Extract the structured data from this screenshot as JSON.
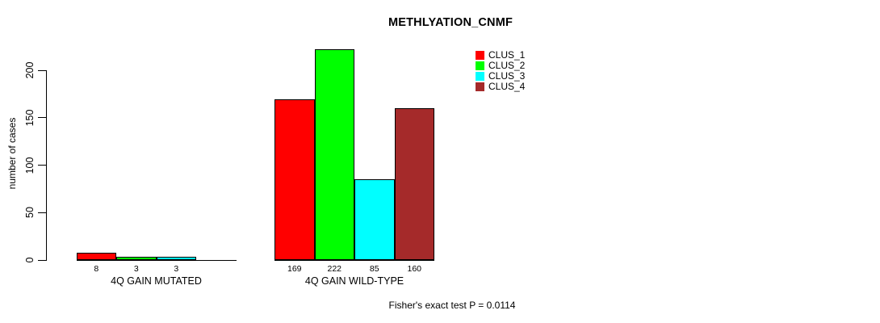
{
  "title": "METHLYATION_CNMF",
  "footnote": "Fisher's exact test P = 0.0114",
  "chart_data": {
    "type": "bar",
    "title": "METHLYATION_CNMF",
    "ylabel": "number of cases",
    "xlabel": "",
    "grid": false,
    "legend_position": "top-right",
    "axis": {
      "ticks": [
        0,
        50,
        100,
        150,
        200
      ],
      "max_tick": 200
    },
    "categories": [
      "4Q GAIN MUTATED",
      "4Q GAIN WILD-TYPE"
    ],
    "series": [
      {
        "name": "CLUS_1",
        "color": "#ff0000",
        "values": [
          8,
          169
        ],
        "value_labels": [
          "8",
          "169"
        ]
      },
      {
        "name": "CLUS_2",
        "color": "#00ff00",
        "values": [
          3,
          222
        ],
        "value_labels": [
          "3",
          "222"
        ]
      },
      {
        "name": "CLUS_3",
        "color": "#00ffff",
        "values": [
          3,
          85
        ],
        "value_labels": [
          "3",
          "85"
        ]
      },
      {
        "name": "CLUS_4",
        "color": "#a52a2a",
        "values": [
          0,
          160
        ],
        "value_labels": [
          "",
          "160"
        ]
      }
    ],
    "bar_border_color": "#000000",
    "annotation": "Fisher's exact test P = 0.0114"
  }
}
